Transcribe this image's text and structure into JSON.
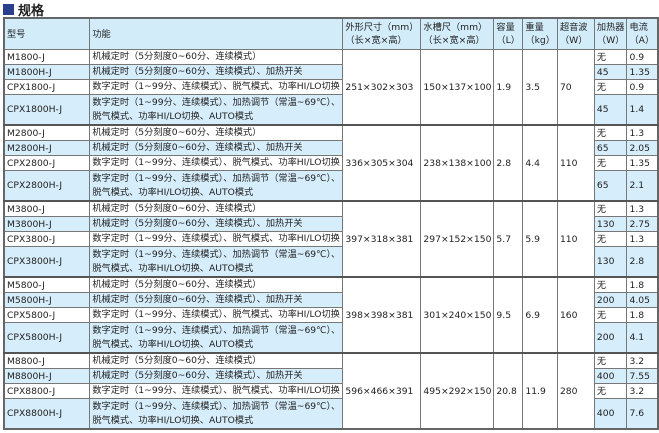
{
  "title": "规格",
  "headers": [
    "型号",
    "功能",
    "外形尺寸（mm）\n（长×宽×高）",
    "水槽尺（mm）\n（长×宽×高）",
    "容量\n（L）",
    "重量\n（kg）",
    "超音波\n（W）",
    "加热器\n（W）",
    "电流\n（A）"
  ],
  "groups": [
    {
      "dims": "251×302×303",
      "tank": "150×137×100",
      "capacity": "1.9",
      "weight": "3.5",
      "ultrasonic": "70",
      "rows": [
        {
          "model": "M1800-J",
          "function": "机械定时（5分刻度0~60分、连续模式）",
          "heater": "无",
          "current": "0.9"
        },
        {
          "model": "M1800H-J",
          "function": "机械定时（5分刻度0~60分、连续模式）、加热开关",
          "heater": "45",
          "current": "1.35"
        },
        {
          "model": "CPX1800-J",
          "function": "数字定时（1~99分、连续模式）、脱气模式、功率HI/LO切换",
          "heater": "无",
          "current": "0.9"
        },
        {
          "model": "CPX1800H-J",
          "function": "数字定时（1~99分、连续模式）、加热调节（常温~69℃）、脱气模式、功率HI/LO切换、AUTO模式",
          "heater": "45",
          "current": "1.4"
        }
      ]
    },
    {
      "dims": "336×305×304",
      "tank": "238×138×100",
      "capacity": "2.8",
      "weight": "4.4",
      "ultrasonic": "110",
      "rows": [
        {
          "model": "M2800-J",
          "function": "机械定时（5分刻度0~60分、连续模式）",
          "heater": "无",
          "current": "1.3"
        },
        {
          "model": "M2800H-J",
          "function": "机械定时（5分刻度0~60分、连续模式）、加热开关",
          "heater": "65",
          "current": "2.05"
        },
        {
          "model": "CPX2800-J",
          "function": "数字定时（1~99分、连续模式）、脱气模式、功率HI/LO切换",
          "heater": "无",
          "current": "1.35"
        },
        {
          "model": "CPX2800H-J",
          "function": "数字定时（1~99分、连续模式）、加热调节（常温~69℃）、脱气模式、功率HI/LO切换、AUTO模式",
          "heater": "65",
          "current": "2.1"
        }
      ]
    },
    {
      "dims": "397×318×381",
      "tank": "297×152×150",
      "capacity": "5.7",
      "weight": "5.9",
      "ultrasonic": "110",
      "rows": [
        {
          "model": "M3800-J",
          "function": "机械定时（5分刻度0~60分、连续模式）",
          "heater": "无",
          "current": "1.3"
        },
        {
          "model": "M3800H-J",
          "function": "机械定时（5分刻度0~60分、连续模式）、加热开关",
          "heater": "130",
          "current": "2.75"
        },
        {
          "model": "CPX3800-J",
          "function": "数字定时（1~99分、连续模式）、脱气模式、功率HI/LO切换",
          "heater": "无",
          "current": "1.3"
        },
        {
          "model": "CPX3800H-J",
          "function": "数字定时（1~99分、连续模式）、加热调节（常温~69℃）、脱气模式、功率HI/LO切换、AUTO模式",
          "heater": "130",
          "current": "2.8"
        }
      ]
    },
    {
      "dims": "398×398×381",
      "tank": "301×240×150",
      "capacity": "9.5",
      "weight": "6.9",
      "ultrasonic": "160",
      "rows": [
        {
          "model": "M5800-J",
          "function": "机械定时（5分刻度0~60分、连续模式）",
          "heater": "无",
          "current": "1.8"
        },
        {
          "model": "M5800H-J",
          "function": "机械定时（5分刻度0~60分、连续模式）、加热开关",
          "heater": "200",
          "current": "4.05"
        },
        {
          "model": "CPX5800-J",
          "function": "数字定时（1~99分、连续模式）、脱气模式、功率HI/LO切换",
          "heater": "无",
          "current": "1.8"
        },
        {
          "model": "CPX5800H-J",
          "function": "数字定时（1~99分、连续模式）、加热调节（常温~69℃）、脱气模式、功率HI/LO切换、AUTO模式",
          "heater": "200",
          "current": "4.1"
        }
      ]
    },
    {
      "dims": "596×466×391",
      "tank": "495×292×150",
      "capacity": "20.8",
      "weight": "11.9",
      "ultrasonic": "280",
      "rows": [
        {
          "model": "M8800-J",
          "function": "机械定时（5分刻度0~60分、连续模式）",
          "heater": "无",
          "current": "3.2"
        },
        {
          "model": "M8800H-J",
          "function": "机械定时（5分刻度0~60分、连续模式）、加热开关",
          "heater": "400",
          "current": "7.55"
        },
        {
          "model": "CPX8800-J",
          "function": "数字定时（1~99分、连续模式）、脱气模式、功率HI/LO切换",
          "heater": "无",
          "current": "3.2"
        },
        {
          "model": "CPX8800H-J",
          "function": "数字定时（1~99分、连续模式）、加热调节（常温~69℃）、脱气模式、功率HI/LO切换、AUTO模式",
          "heater": "400",
          "current": "7.6"
        }
      ]
    }
  ]
}
